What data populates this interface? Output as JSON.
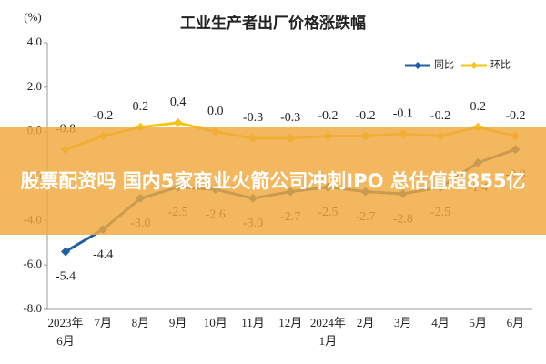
{
  "chart_data": {
    "type": "line",
    "title": "工业生产者出厂价格涨跌幅",
    "y_unit": "(%)",
    "categories": [
      "2023年\n6月",
      "7月",
      "8月",
      "9月",
      "10月",
      "11月",
      "12月",
      "2024年\n1月",
      "2月",
      "3月",
      "4月",
      "5月",
      "6月"
    ],
    "series": [
      {
        "name": "同比",
        "color": "#1f5fa8",
        "values": [
          -5.4,
          -4.4,
          -3.0,
          -2.5,
          -2.6,
          -3.0,
          -2.7,
          -2.5,
          -2.7,
          -2.8,
          -2.5,
          -1.4,
          -0.8
        ],
        "value_labels": [
          "-5.4",
          "-4.4",
          "-3.0",
          "-2.5",
          "-2.6",
          "-3.0",
          "-2.7",
          "-2.5",
          "-2.7",
          "-2.8",
          "-2.5",
          "-1.4",
          "-0.8"
        ]
      },
      {
        "name": "环比",
        "color": "#f5c518",
        "values": [
          -0.8,
          -0.2,
          0.2,
          0.4,
          0.0,
          -0.3,
          -0.3,
          -0.2,
          -0.2,
          -0.1,
          -0.2,
          0.2,
          -0.2
        ],
        "value_labels": [
          "-0.8",
          "-0.2",
          "0.2",
          "0.4",
          "0.0",
          "-0.3",
          "-0.3",
          "-0.2",
          "-0.2",
          "-0.1",
          "-0.2",
          "0.2",
          "-0.2"
        ]
      }
    ],
    "ylim": [
      -8.0,
      4.0
    ],
    "yticks": [
      {
        "value": -8,
        "label": "-8.0"
      },
      {
        "value": -6,
        "label": "-6.0"
      },
      {
        "value": -4,
        "label": "-4.0"
      },
      {
        "value": -2,
        "label": "-2.0"
      },
      {
        "value": 0,
        "label": "0.0"
      },
      {
        "value": 2,
        "label": "2.0"
      },
      {
        "value": 4,
        "label": "4.0"
      }
    ],
    "grid": false,
    "legend": "top-right"
  },
  "banner": {
    "text": "股票配资吗 国内5家商业火箭公司冲刺IPO 总估值超855亿"
  }
}
